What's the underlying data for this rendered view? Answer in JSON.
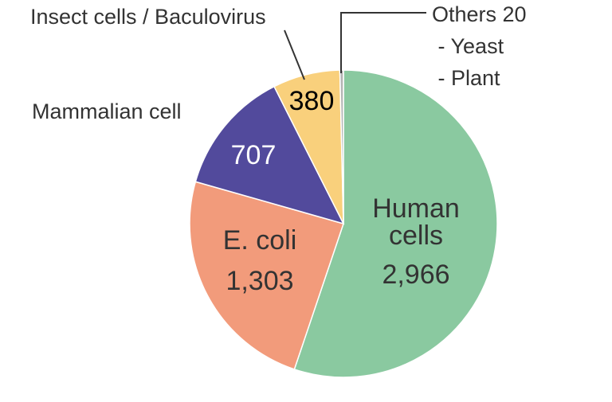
{
  "chart_data": {
    "type": "pie",
    "start": "top",
    "direction": "clockwise",
    "slices": [
      {
        "name": "Human cells",
        "label_lines": [
          "Human",
          "cells"
        ],
        "value": 2966,
        "value_label": "2,966",
        "color": "#8ac9a0",
        "text_color": "#333333"
      },
      {
        "name": "E. coli",
        "label_lines": [
          "E. coli"
        ],
        "value": 1303,
        "value_label": "1,303",
        "color": "#f29b7b",
        "text_color": "#333333"
      },
      {
        "name": "Mammalian cell",
        "label_lines": [
          "Mammalian cell"
        ],
        "value": 707,
        "value_label": "707",
        "color": "#524a9c",
        "text_color": "#ffffff"
      },
      {
        "name": "Insect cells / Baculovirus",
        "label_lines": [
          "Insect cells / Baculovirus"
        ],
        "value": 380,
        "value_label": "380",
        "color": "#f9d07c",
        "text_color": "#000000"
      },
      {
        "name": "Others",
        "label_lines": [
          "Others 20",
          " - Yeast",
          " - Plant"
        ],
        "value": 20,
        "value_label": "",
        "color": "#b4b4b4",
        "text_color": "#333333"
      }
    ]
  }
}
